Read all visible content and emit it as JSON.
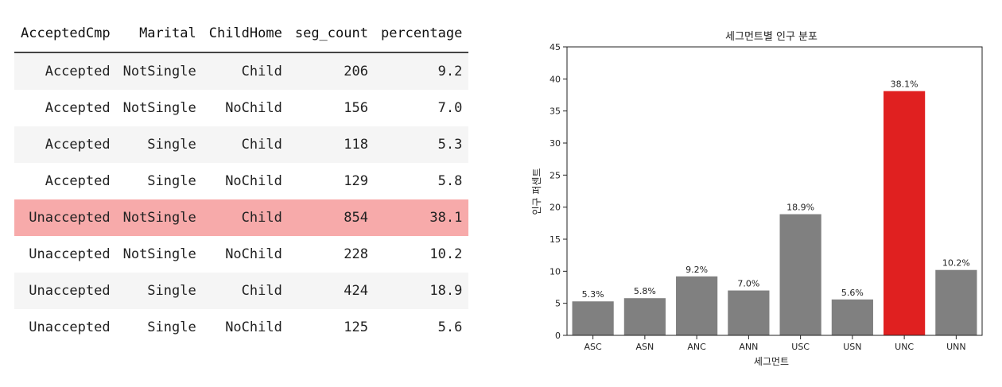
{
  "table": {
    "columns": [
      "AcceptedCmp",
      "Marital",
      "ChildHome",
      "seg_count",
      "percentage"
    ],
    "rows": [
      [
        "Accepted",
        "NotSingle",
        "Child",
        "206",
        "9.2"
      ],
      [
        "Accepted",
        "NotSingle",
        "NoChild",
        "156",
        "7.0"
      ],
      [
        "Accepted",
        "Single",
        "Child",
        "118",
        "5.3"
      ],
      [
        "Accepted",
        "Single",
        "NoChild",
        "129",
        "5.8"
      ],
      [
        "Unaccepted",
        "NotSingle",
        "Child",
        "854",
        "38.1"
      ],
      [
        "Unaccepted",
        "NotSingle",
        "NoChild",
        "228",
        "10.2"
      ],
      [
        "Unaccepted",
        "Single",
        "Child",
        "424",
        "18.9"
      ],
      [
        "Unaccepted",
        "Single",
        "NoChild",
        "125",
        "5.6"
      ]
    ],
    "highlight_row": 4,
    "highlight_color": "#f7aaaa"
  },
  "chart_data": {
    "type": "bar",
    "title": "세그먼트별 인구 분포",
    "xlabel": "세그먼트",
    "ylabel": "인구 퍼센트",
    "categories": [
      "ASC",
      "ASN",
      "ANC",
      "ANN",
      "USC",
      "USN",
      "UNC",
      "UNN"
    ],
    "values": [
      5.3,
      5.8,
      9.2,
      7.0,
      18.9,
      5.6,
      38.1,
      10.2
    ],
    "labels": [
      "5.3%",
      "5.8%",
      "9.2%",
      "7.0%",
      "18.9%",
      "5.6%",
      "38.1%",
      "10.2%"
    ],
    "ylim": [
      0,
      45
    ],
    "yticks": [
      0,
      5,
      10,
      15,
      20,
      25,
      30,
      35,
      40,
      45
    ],
    "bar_color": "#808080",
    "highlight_color": "#e02020",
    "highlight_category": "UNC",
    "grid": false
  }
}
